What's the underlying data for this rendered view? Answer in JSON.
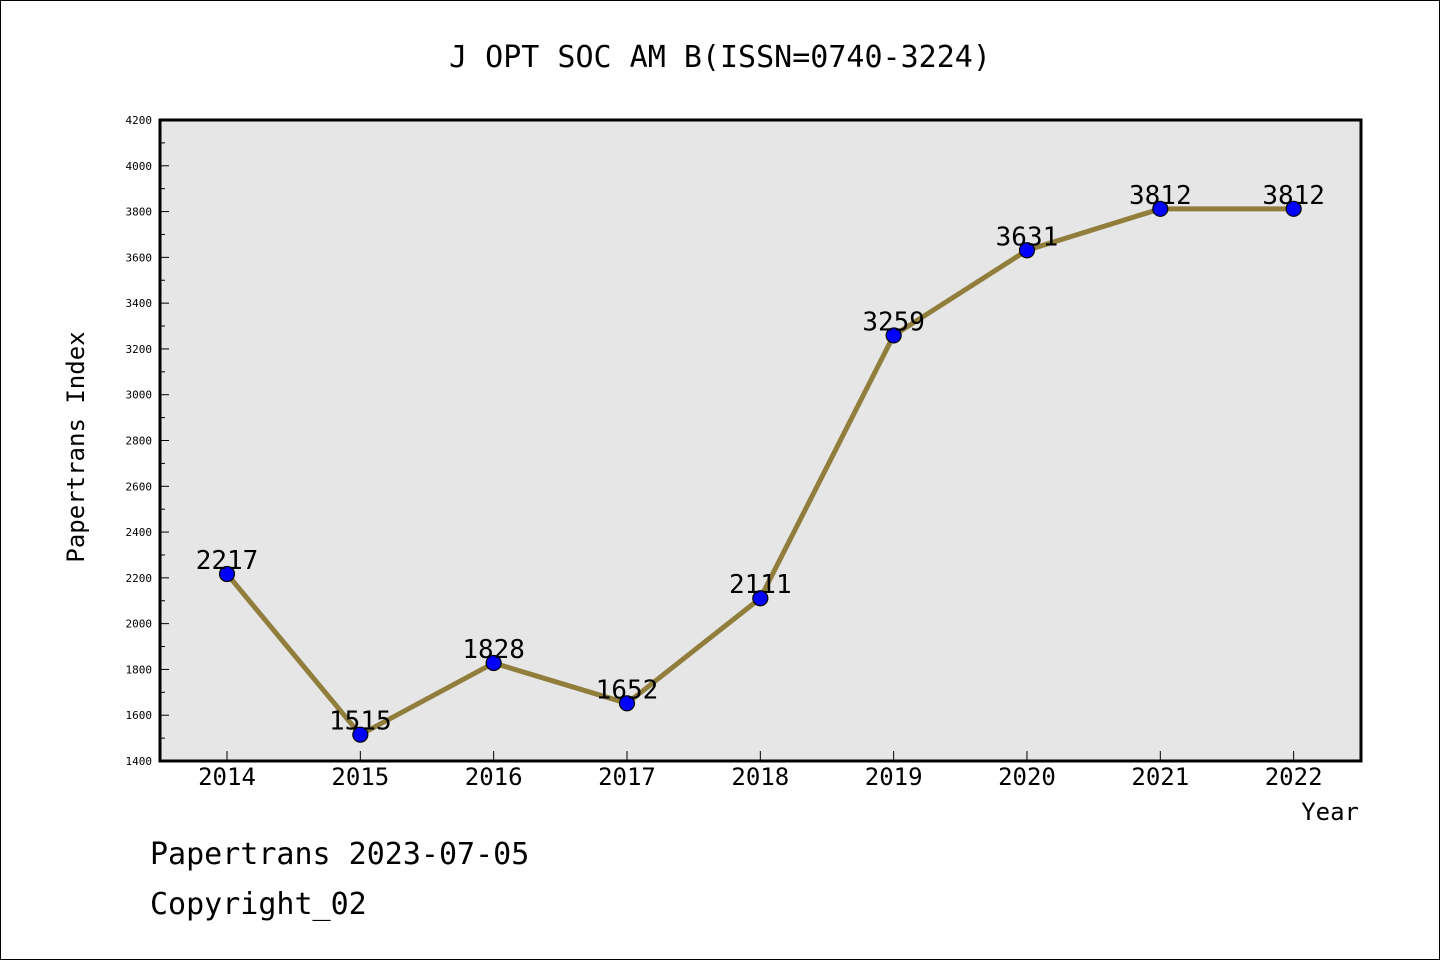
{
  "chart_data": {
    "type": "line",
    "title": "J OPT SOC AM B(ISSN=0740-3224)",
    "xlabel": "Year",
    "ylabel": "Papertrans Index",
    "categories": [
      "2014",
      "2015",
      "2016",
      "2017",
      "2018",
      "2019",
      "2020",
      "2021",
      "2022"
    ],
    "series": [
      {
        "values": [
          2217,
          1515,
          1828,
          1652,
          2111,
          3259,
          3631,
          3812,
          3812
        ],
        "line_color": "#917e3c",
        "marker_color": "#0000ff",
        "data_labels": [
          "2217",
          "1515",
          "1828",
          "1652",
          "2111",
          "3259",
          "3631",
          "3812",
          "3812"
        ]
      }
    ],
    "ylim": [
      1400,
      4200
    ],
    "yticks": [
      "1400",
      "1600",
      "1800",
      "2000",
      "2200",
      "2400",
      "2600",
      "2800",
      "3000",
      "3200",
      "3400",
      "3600",
      "3800",
      "4000",
      "4200"
    ],
    "grid": false,
    "legend": "none",
    "plot_background": "#e6e6e6"
  },
  "footer": {
    "line1": "Papertrans 2023-07-05",
    "line2": "Copyright_02"
  }
}
